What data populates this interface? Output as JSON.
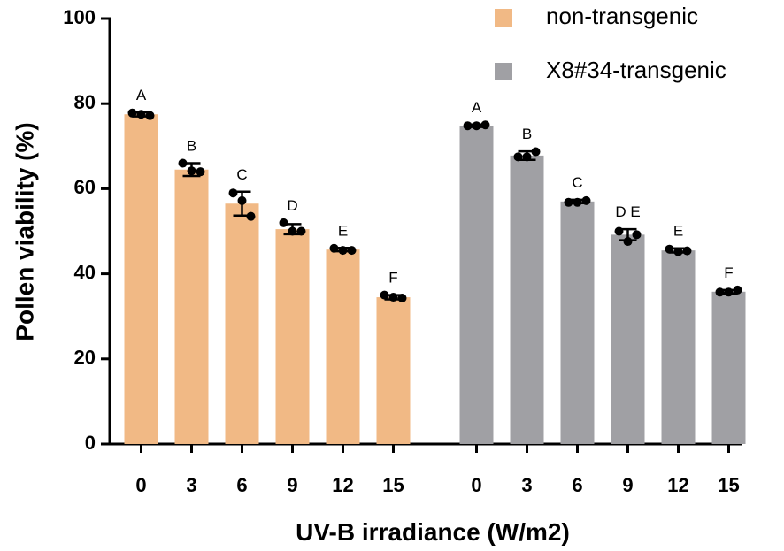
{
  "chart_data": {
    "type": "bar",
    "title": "",
    "xlabel": "UV-B irradiance (W/m2)",
    "ylabel": "Pollen viability (%)",
    "ylim": [
      0,
      100
    ],
    "yticks": [
      0,
      20,
      40,
      60,
      80,
      100
    ],
    "grid": false,
    "legend_position": "top-right",
    "categories": [
      "0",
      "3",
      "6",
      "9",
      "12",
      "15"
    ],
    "series": [
      {
        "name": "non-transgenic",
        "color": "#F1B985",
        "values": [
          77.5,
          64.5,
          56.5,
          50.5,
          45.7,
          34.5
        ],
        "errors": [
          0.5,
          1.5,
          2.8,
          1.2,
          0.4,
          0.5
        ],
        "points": [
          [
            77.8,
            77.5,
            77.2
          ],
          [
            66.0,
            64.2,
            64.0
          ],
          [
            59.0,
            57.2,
            53.5
          ],
          [
            52.0,
            50.0,
            50.0
          ],
          [
            46.0,
            45.5,
            45.5
          ],
          [
            35.0,
            34.5,
            34.3
          ]
        ],
        "letters": [
          "A",
          "B",
          "C",
          "D",
          "E",
          "F"
        ]
      },
      {
        "name": "X8#34-transgenic",
        "color": "#A0A0A4",
        "values": [
          74.8,
          67.8,
          57.0,
          49.2,
          45.5,
          35.8
        ],
        "errors": [
          0.3,
          1.0,
          0.4,
          1.3,
          0.5,
          0.4
        ],
        "points": [
          [
            74.8,
            74.8,
            75.0
          ],
          [
            67.5,
            67.5,
            68.7
          ],
          [
            56.8,
            56.8,
            57.2
          ],
          [
            50.0,
            47.6,
            49.2
          ],
          [
            45.8,
            45.2,
            45.4
          ],
          [
            35.7,
            35.7,
            36.2
          ]
        ],
        "letters": [
          "A",
          "B",
          "C",
          "D E",
          "E",
          "F"
        ]
      }
    ]
  }
}
